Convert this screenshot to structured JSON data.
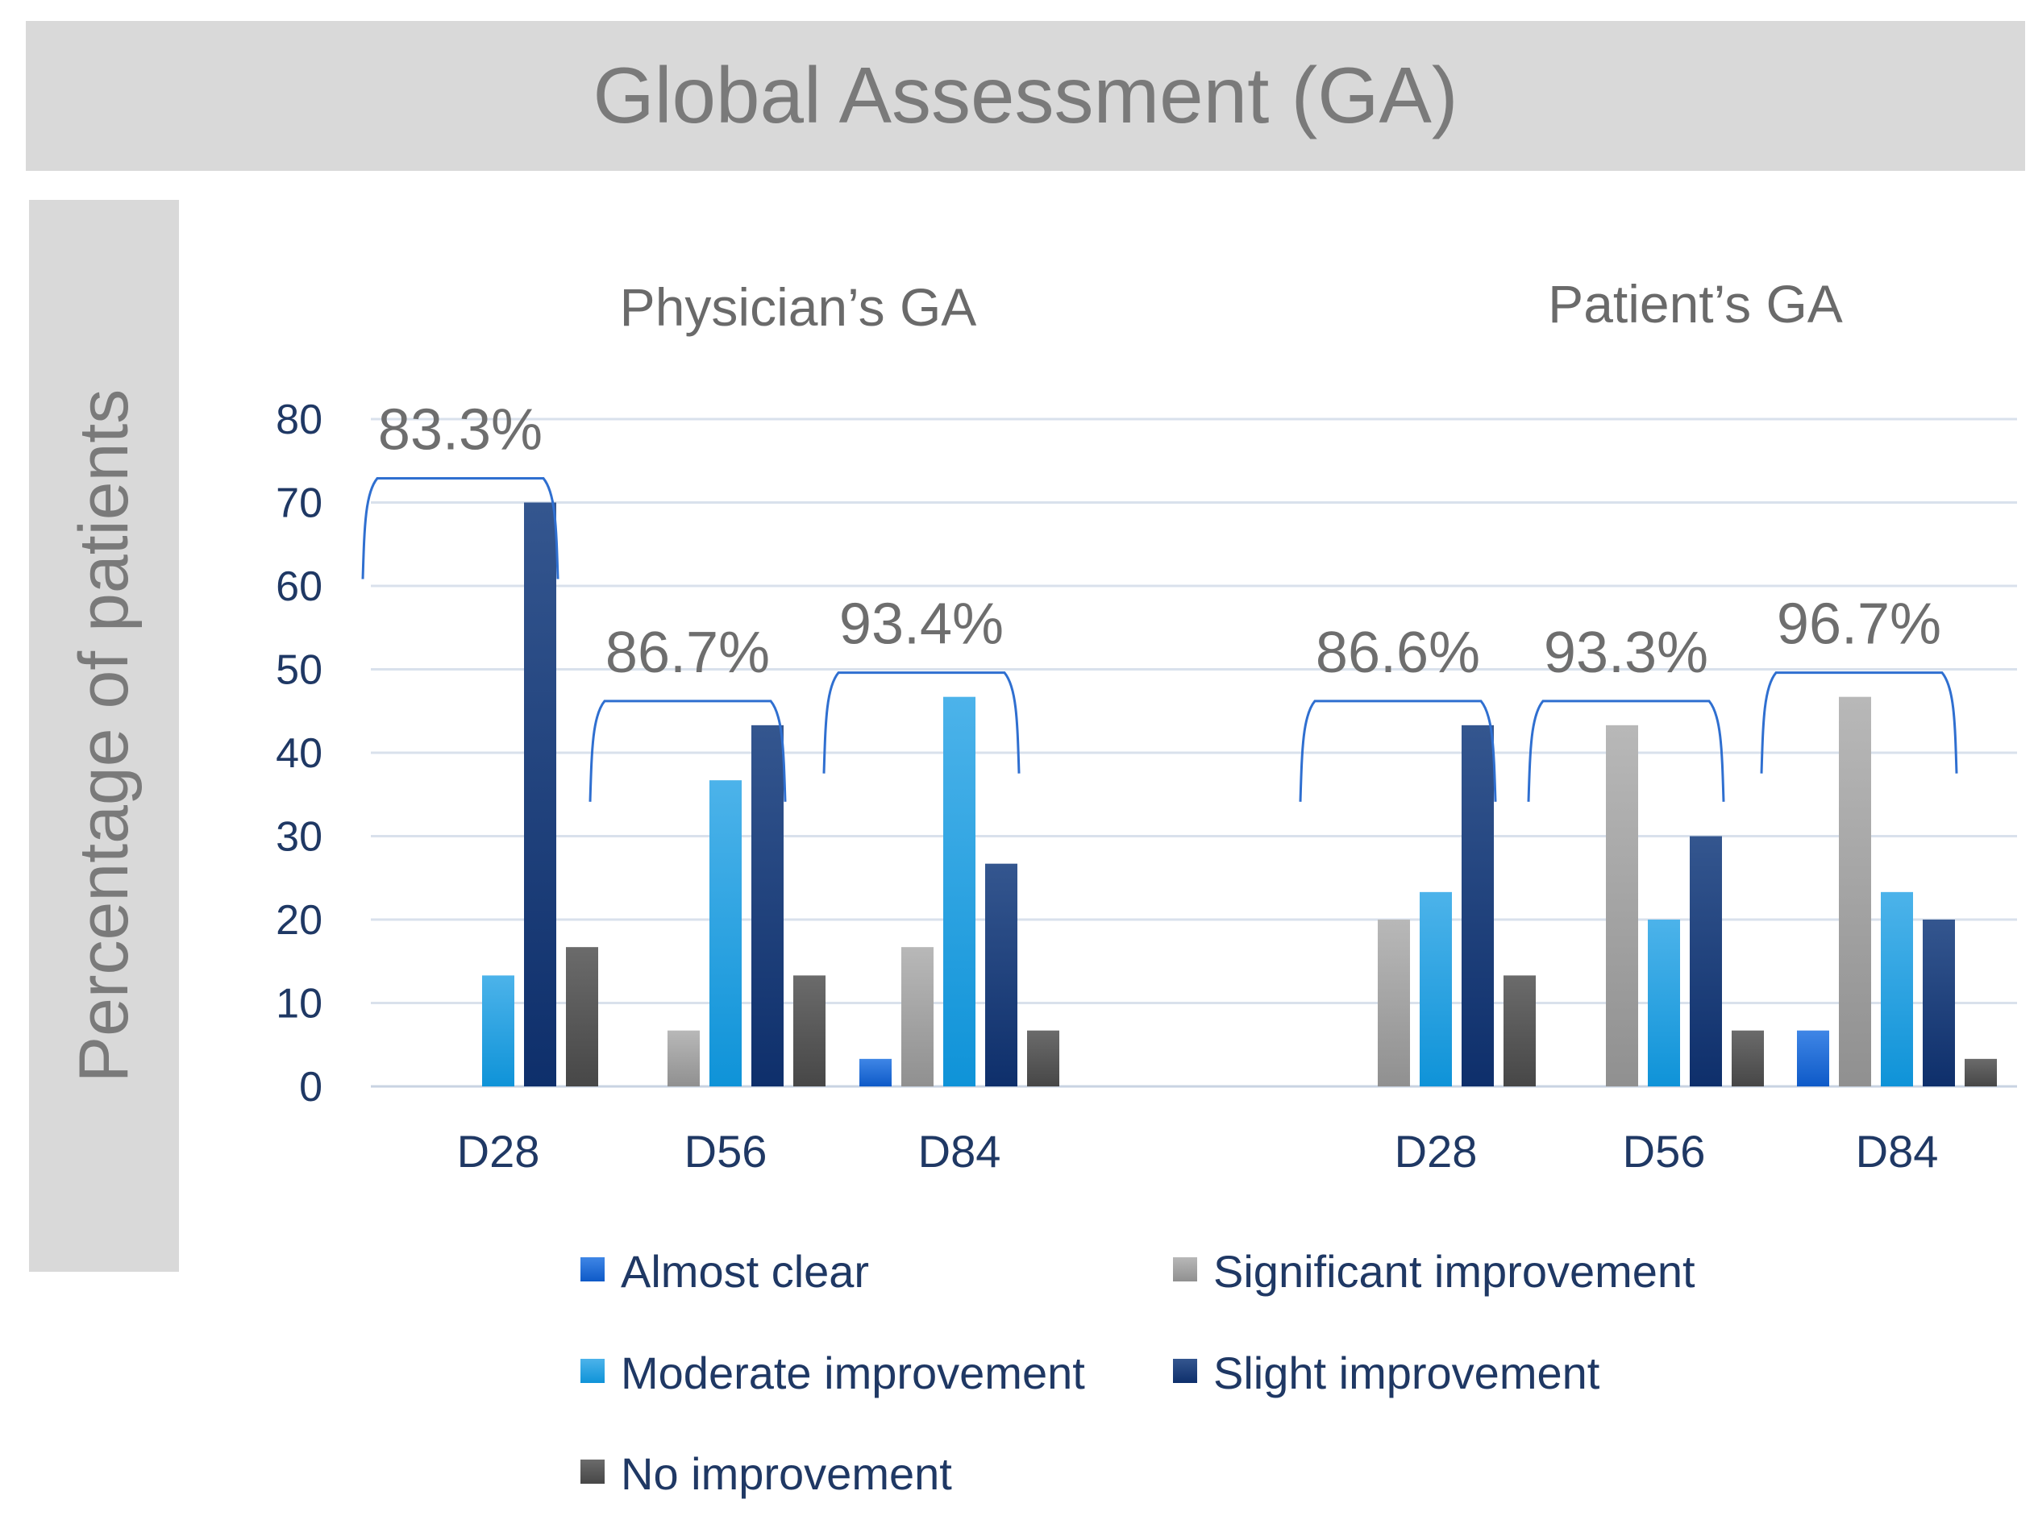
{
  "colors": {
    "almost_clear": "#1a6ed8",
    "significant": "#a6a6a6",
    "moderate": "#29a3e3",
    "slight": "#1a3f7a",
    "none": "#595959",
    "bracket": "#2f6fd0",
    "grid": "#d9e1ec",
    "banner": "#d9d9d9"
  },
  "chart_data": {
    "type": "bar",
    "title": "Global Assessment (GA)",
    "ylabel": "Percentage of patients",
    "ylim": [
      0,
      80
    ],
    "yticks": [
      0,
      10,
      20,
      30,
      40,
      50,
      60,
      70,
      80
    ],
    "grid": true,
    "legend": [
      {
        "key": "almost_clear",
        "label": "Almost clear"
      },
      {
        "key": "significant",
        "label": "Significant improvement"
      },
      {
        "key": "moderate",
        "label": "Moderate improvement"
      },
      {
        "key": "slight",
        "label": "Slight improvement"
      },
      {
        "key": "none",
        "label": "No improvement"
      }
    ],
    "panels": [
      {
        "title": "Physician’s GA",
        "groups": [
          {
            "category": "D28",
            "total_label": "83.3%",
            "values": {
              "almost_clear": 0,
              "significant": 0,
              "moderate": 13.3,
              "slight": 70,
              "none": 16.7
            }
          },
          {
            "category": "D56",
            "total_label": "86.7%",
            "values": {
              "almost_clear": 0,
              "significant": 6.7,
              "moderate": 36.7,
              "slight": 43.3,
              "none": 13.3
            }
          },
          {
            "category": "D84",
            "total_label": "93.4%",
            "values": {
              "almost_clear": 3.3,
              "significant": 16.7,
              "moderate": 46.7,
              "slight": 26.7,
              "none": 6.7
            }
          }
        ]
      },
      {
        "title": "Patient’s GA",
        "groups": [
          {
            "category": "D28",
            "total_label": "86.6%",
            "values": {
              "almost_clear": 0,
              "significant": 20,
              "moderate": 23.3,
              "slight": 43.3,
              "none": 13.3
            }
          },
          {
            "category": "D56",
            "total_label": "93.3%",
            "values": {
              "almost_clear": 0,
              "significant": 43.3,
              "moderate": 20,
              "slight": 30,
              "none": 6.7
            }
          },
          {
            "category": "D84",
            "total_label": "96.7%",
            "values": {
              "almost_clear": 6.7,
              "significant": 46.7,
              "moderate": 23.3,
              "slight": 20,
              "none": 3.3
            }
          }
        ]
      }
    ]
  }
}
